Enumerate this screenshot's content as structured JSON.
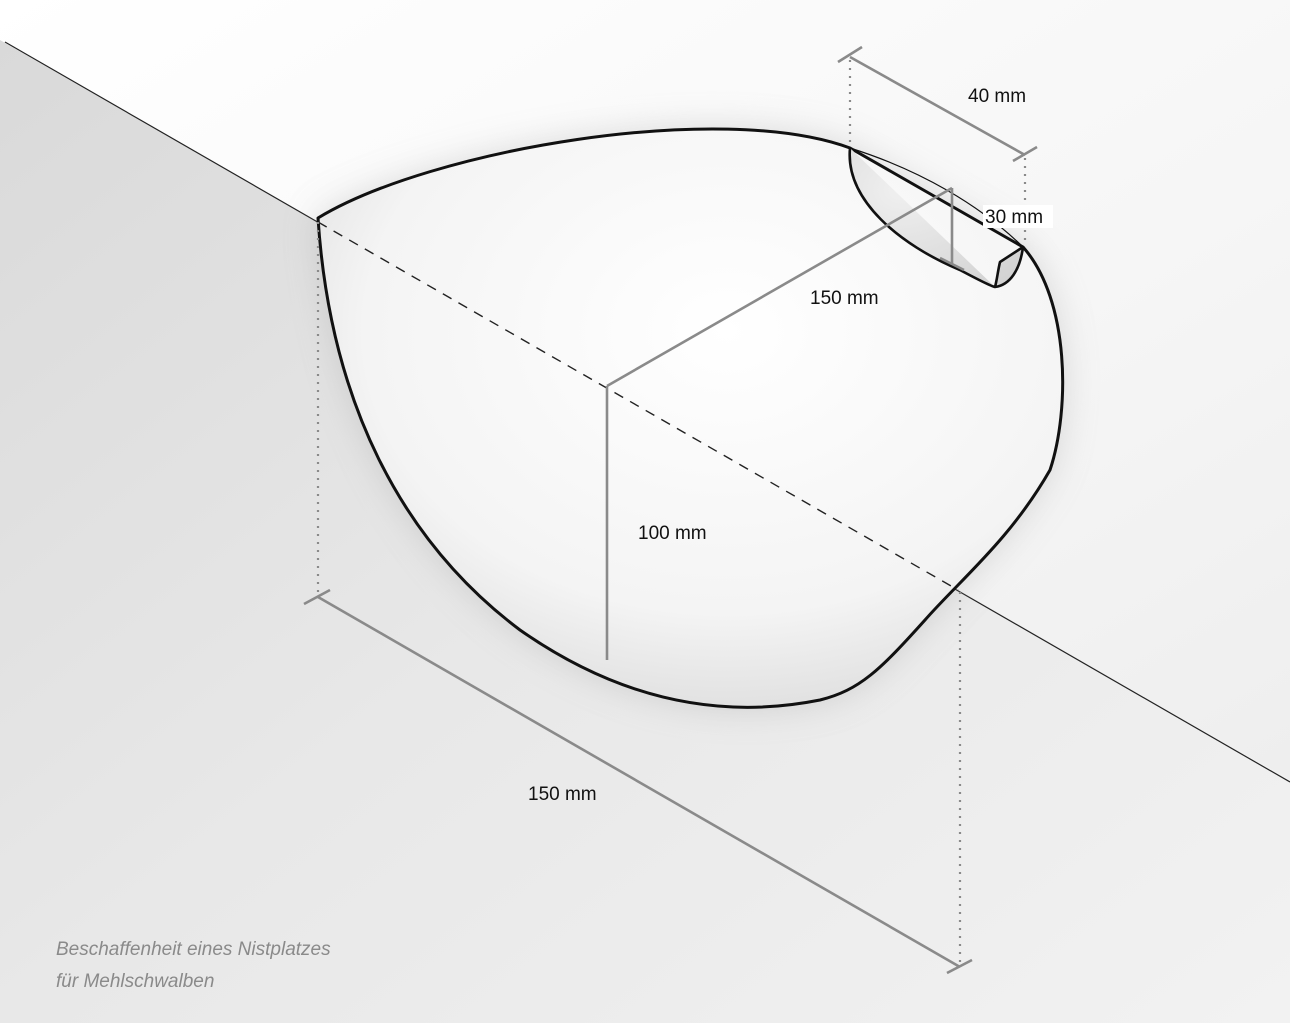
{
  "colors": {
    "outline": "#111111",
    "dimension_line": "#8a8a8a",
    "caption": "#8a8a8a",
    "wall_upper": "#f4f4f4",
    "wall_lower": "#e6e6e6"
  },
  "dimensions": {
    "opening_width": "40 mm",
    "opening_height": "30 mm",
    "depth": "150 mm",
    "height": "100 mm",
    "width": "150 mm"
  },
  "caption": {
    "line1": "Beschaffenheit eines Nistplatzes",
    "line2": "für Mehlschwalben"
  }
}
